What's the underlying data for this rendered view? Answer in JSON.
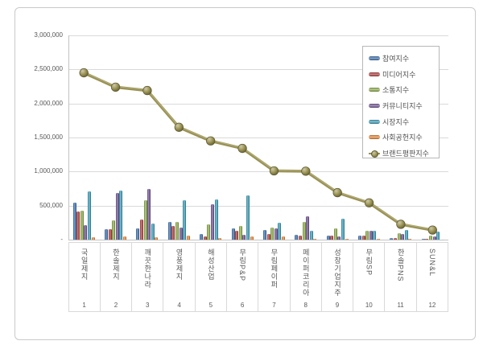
{
  "window": {
    "background": "#ffffff",
    "frame_border": "#c9c9c9"
  },
  "colors": {
    "grid": "#d9d9d9",
    "axis_line": "#c3c3c3",
    "axis_text": "#595959",
    "category_text": "#595959",
    "legend_border": "#b7b7b7",
    "legend_text": "#525252"
  },
  "chart_data": {
    "type": "bar",
    "title": "",
    "categories": [
      "국일제지",
      "한솔제지",
      "깨끗한나라",
      "영풍제지",
      "해성산업",
      "무림P&P",
      "무림페이퍼",
      "페이퍼코리아",
      "성창기업지주",
      "무림SP",
      "한솔PNS",
      "SUN&L"
    ],
    "category_numbers": [
      "1",
      "2",
      "3",
      "4",
      "5",
      "6",
      "7",
      "8",
      "9",
      "10",
      "11",
      "12"
    ],
    "series": [
      {
        "name": "참여지수",
        "type": "bar",
        "color": "#4F81BD",
        "values": [
          540000,
          155000,
          165000,
          260000,
          85000,
          165000,
          140000,
          65000,
          62000,
          55000,
          18000,
          15000
        ]
      },
      {
        "name": "미디어지수",
        "type": "bar",
        "color": "#C0504D",
        "values": [
          410000,
          155000,
          300000,
          200000,
          45000,
          125000,
          85000,
          58000,
          55000,
          55000,
          18000,
          15000
        ]
      },
      {
        "name": "소통지수",
        "type": "bar",
        "color": "#9BBB59",
        "values": [
          430000,
          285000,
          580000,
          260000,
          225000,
          205000,
          180000,
          255000,
          165000,
          125000,
          95000,
          64000
        ]
      },
      {
        "name": "커뮤니티지수",
        "type": "bar",
        "color": "#8064A2",
        "values": [
          210000,
          680000,
          740000,
          180000,
          525000,
          65000,
          165000,
          345000,
          45000,
          135000,
          78000,
          52000
        ]
      },
      {
        "name": "시장지수",
        "type": "bar",
        "color": "#4BACC6",
        "values": [
          710000,
          715000,
          240000,
          580000,
          585000,
          645000,
          245000,
          125000,
          310000,
          130000,
          145000,
          124000
        ]
      },
      {
        "name": "사회공헌지수",
        "type": "bar",
        "color": "#F79646",
        "values": [
          40000,
          50000,
          35000,
          60000,
          20000,
          45000,
          45000,
          12000,
          8000,
          8000,
          6000,
          5000
        ]
      },
      {
        "name": "브랜드평판지수",
        "type": "line",
        "color": "#9A9252",
        "values": [
          2450000,
          2240000,
          2190000,
          1650000,
          1450000,
          1340000,
          1010000,
          1005000,
          690000,
          540000,
          225000,
          140000
        ]
      }
    ],
    "y_axis": {
      "min": 0,
      "max": 3000000,
      "tick_interval": 500000,
      "tick_labels": [
        "3,000,000",
        "2,500,000",
        "2,000,000",
        "1,500,000",
        "1,000,000",
        "500,000",
        "-"
      ]
    },
    "grid": true,
    "legend_position": "inside-top-right"
  }
}
